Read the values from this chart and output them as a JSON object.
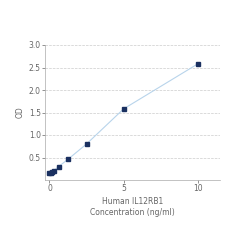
{
  "x_values": [
    0.0,
    0.078,
    0.156,
    0.313,
    0.625,
    1.25,
    2.5,
    5.0,
    10.0
  ],
  "y_values": [
    0.148,
    0.155,
    0.17,
    0.21,
    0.3,
    0.46,
    0.8,
    1.58,
    2.58
  ],
  "line_color": "#b8d4eb",
  "marker_color": "#1a3060",
  "marker_size": 3.5,
  "marker_style": "s",
  "xlabel_line1": "Human IL12RB1",
  "xlabel_line2": "Concentration (ng/ml)",
  "ylabel": "OD",
  "xlim": [
    -0.3,
    11.5
  ],
  "ylim": [
    0.0,
    3.0
  ],
  "yticks": [
    0.5,
    1.0,
    1.5,
    2.0,
    2.5,
    3.0
  ],
  "xticks": [
    0,
    5,
    10
  ],
  "xtick_labels": [
    "0",
    "5",
    "10"
  ],
  "grid_color": "#cccccc",
  "background_color": "#ffffff",
  "axis_fontsize": 5.5,
  "tick_fontsize": 5.5,
  "ylabel_fontsize": 5.5,
  "linewidth": 0.8,
  "spine_color": "#aaaaaa"
}
